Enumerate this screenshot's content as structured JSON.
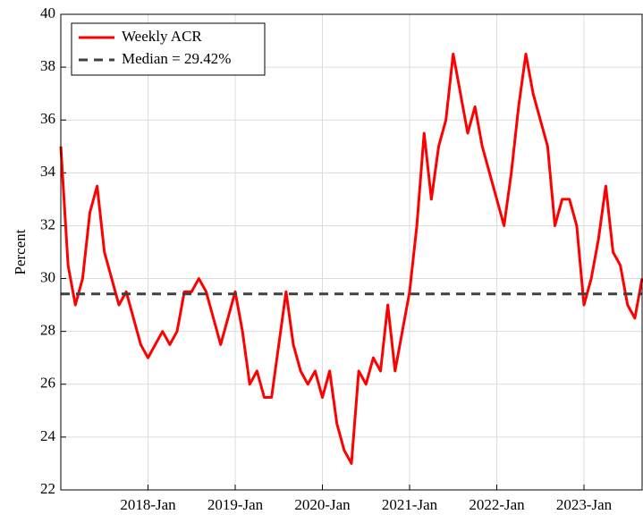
{
  "chart_data": {
    "type": "line",
    "ylabel": "Percent",
    "x": [
      "2017-01",
      "2017-02",
      "2017-03",
      "2017-04",
      "2017-05",
      "2017-06",
      "2017-07",
      "2017-08",
      "2017-09",
      "2017-10",
      "2017-11",
      "2017-12",
      "2018-01",
      "2018-02",
      "2018-03",
      "2018-04",
      "2018-05",
      "2018-06",
      "2018-07",
      "2018-08",
      "2018-09",
      "2018-10",
      "2018-11",
      "2018-12",
      "2019-01",
      "2019-02",
      "2019-03",
      "2019-04",
      "2019-05",
      "2019-06",
      "2019-07",
      "2019-08",
      "2019-09",
      "2019-10",
      "2019-11",
      "2019-12",
      "2020-01",
      "2020-02",
      "2020-03",
      "2020-04",
      "2020-05",
      "2020-06",
      "2020-07",
      "2020-08",
      "2020-09",
      "2020-10",
      "2020-11",
      "2020-12",
      "2021-01",
      "2021-02",
      "2021-03",
      "2021-04",
      "2021-05",
      "2021-06",
      "2021-07",
      "2021-08",
      "2021-09",
      "2021-10",
      "2021-11",
      "2021-12",
      "2022-01",
      "2022-02",
      "2022-03",
      "2022-04",
      "2022-05",
      "2022-06",
      "2022-07",
      "2022-08",
      "2022-09",
      "2022-10",
      "2022-11",
      "2022-12",
      "2023-01",
      "2023-02",
      "2023-03",
      "2023-04",
      "2023-05",
      "2023-06",
      "2023-07",
      "2023-08",
      "2023-09"
    ],
    "series": [
      {
        "name": "Weekly ACR",
        "color": "#ff0000",
        "values": [
          35,
          30.5,
          29,
          30,
          32.5,
          33.5,
          31,
          30,
          29,
          29.5,
          28.5,
          27.5,
          27,
          27.5,
          28,
          27.5,
          28,
          29.5,
          29.5,
          30,
          29.5,
          28.5,
          27.5,
          28.5,
          29.5,
          28,
          26,
          26.5,
          25.5,
          25.5,
          27.5,
          29.5,
          27.5,
          26.5,
          26,
          26.5,
          25.5,
          26.5,
          24.5,
          23.5,
          23,
          26.5,
          26,
          27,
          26.5,
          29,
          26.5,
          28,
          29.5,
          32,
          35.5,
          33,
          35,
          36,
          38.5,
          37,
          35.5,
          36.5,
          35,
          34,
          33,
          32,
          34,
          36.5,
          38.5,
          37,
          36,
          35,
          32,
          33,
          33,
          32,
          29,
          30,
          31.5,
          33.5,
          31,
          30.5,
          29,
          28.5,
          30
        ]
      }
    ],
    "reference": {
      "name": "Median = 29.42%",
      "value": 29.42,
      "color": "#404040"
    },
    "xlim": [
      "2017-01",
      "2023-09"
    ],
    "xticks": [
      {
        "value": "2018-01",
        "label": "2018-Jan"
      },
      {
        "value": "2019-01",
        "label": "2019-Jan"
      },
      {
        "value": "2020-01",
        "label": "2020-Jan"
      },
      {
        "value": "2021-01",
        "label": "2021-Jan"
      },
      {
        "value": "2022-01",
        "label": "2022-Jan"
      },
      {
        "value": "2023-01",
        "label": "2023-Jan"
      }
    ],
    "ylim": [
      22,
      40
    ],
    "yticks": [
      22,
      24,
      26,
      28,
      30,
      32,
      34,
      36,
      38,
      40
    ],
    "grid": true,
    "legend": "upper left"
  }
}
